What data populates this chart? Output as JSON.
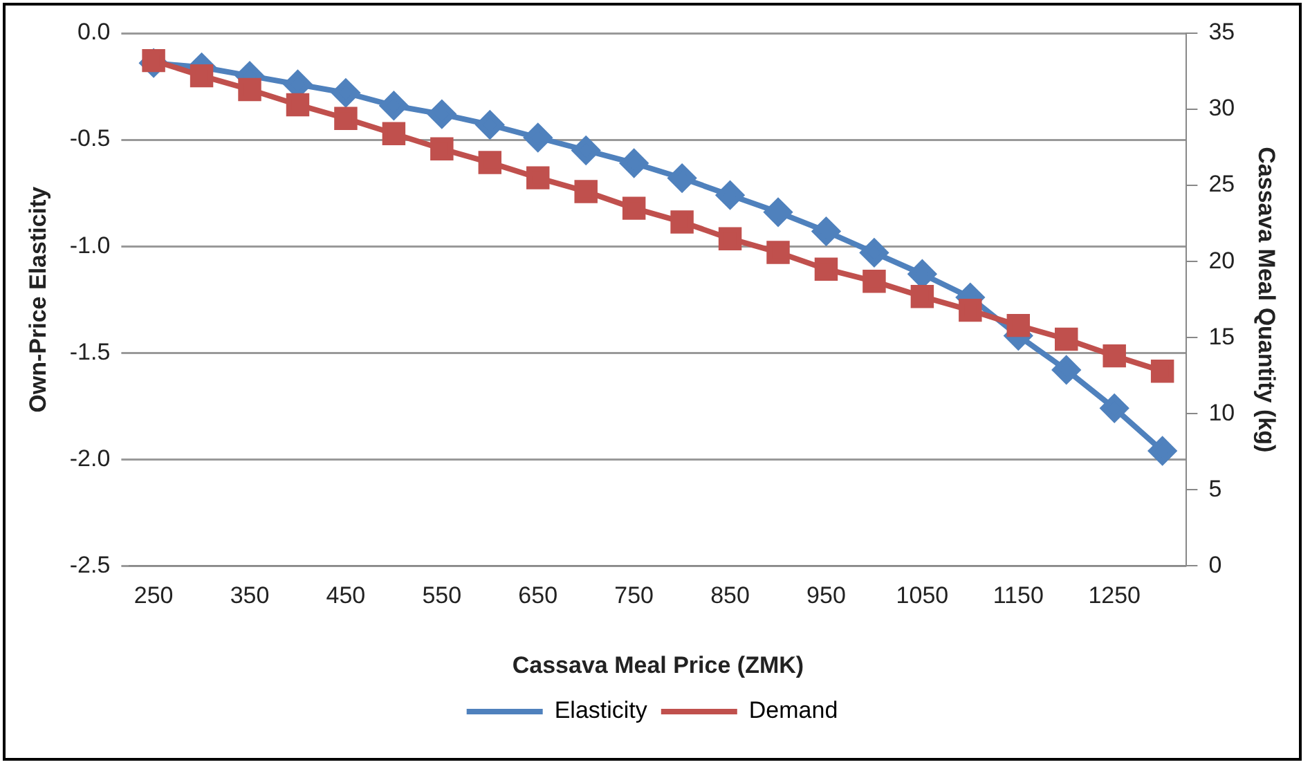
{
  "chart_data": {
    "type": "line",
    "xlabel": "Cassava Meal Price (ZMK)",
    "ylabel": "Own-Price Elasticity",
    "y2label": "Cassava Meal Quantity (kg)",
    "categories": [
      "250",
      null,
      "350",
      null,
      "450",
      null,
      "550",
      null,
      "650",
      null,
      "750",
      null,
      "850",
      null,
      "950",
      null,
      "1050",
      null,
      "1150",
      null,
      "1250",
      null
    ],
    "series": [
      {
        "name": "Elasticity",
        "color": "#4f81bd",
        "marker": "diamond",
        "values": [
          -0.14,
          -0.16,
          -0.2,
          -0.24,
          -0.28,
          -0.34,
          -0.38,
          -0.43,
          -0.49,
          -0.55,
          -0.61,
          -0.68,
          -0.76,
          -0.84,
          -0.93,
          -1.03,
          -1.13,
          -1.24,
          -1.42,
          -1.58,
          -1.76,
          -1.96
        ]
      },
      {
        "name": "Demand",
        "color": "#c0504d",
        "marker": "square",
        "axis": "y2",
        "values": [
          33.2,
          32.2,
          31.3,
          30.3,
          29.4,
          28.4,
          27.4,
          26.5,
          25.5,
          24.6,
          23.5,
          22.6,
          21.5,
          20.6,
          19.5,
          18.7,
          17.7,
          16.8,
          15.8,
          14.9,
          13.8,
          12.8
        ]
      }
    ],
    "ylim": [
      -2.5,
      0
    ],
    "yticks": [
      {
        "value": -2.5,
        "label": "-2.5"
      },
      {
        "value": -2,
        "label": "-2.0"
      },
      {
        "value": -1.5,
        "label": "-1.5"
      },
      {
        "value": -1,
        "label": "-1.0"
      },
      {
        "value": -0.5,
        "label": "-0.5"
      },
      {
        "value": 0,
        "label": "0.0"
      }
    ],
    "y2lim": [
      0,
      35
    ],
    "y2ticks": [
      0,
      5,
      10,
      15,
      20,
      25,
      30,
      35
    ],
    "grid": "y",
    "legend": "bottom",
    "line_style": "solid"
  }
}
